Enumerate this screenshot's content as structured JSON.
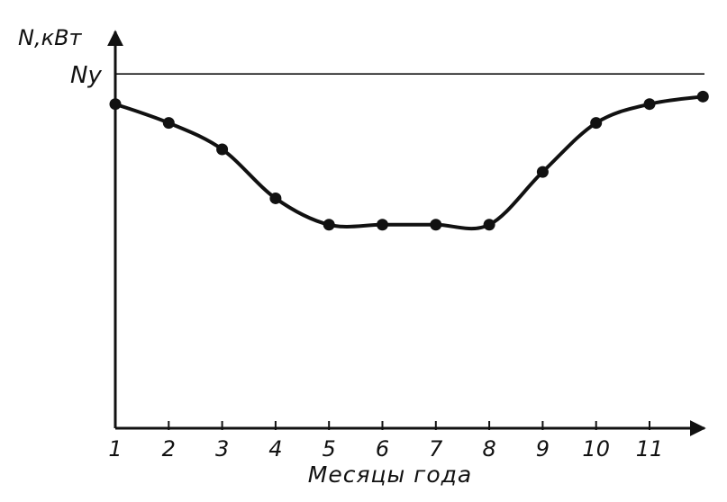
{
  "chart_data": {
    "type": "line",
    "title": "",
    "xlabel": "Месяцы года",
    "ylabel": "N,кВт",
    "x": [
      1,
      2,
      3,
      4,
      5,
      6,
      7,
      8,
      9,
      10,
      11,
      12
    ],
    "tick_labels": [
      "1",
      "2",
      "3",
      "4",
      "5",
      "6",
      "7",
      "8",
      "9",
      "10",
      "11"
    ],
    "series": [
      {
        "values": [
          0.86,
          0.81,
          0.74,
          0.61,
          0.54,
          0.54,
          0.54,
          0.54,
          0.68,
          0.81,
          0.86,
          0.88
        ]
      }
    ],
    "reference_line": {
      "label": "Ny",
      "value": 0.94
    },
    "xlim": [
      1,
      12
    ],
    "ylim": [
      0,
      1
    ],
    "grid": false,
    "legend": "none",
    "y_axis_numeric_ticks": false
  }
}
